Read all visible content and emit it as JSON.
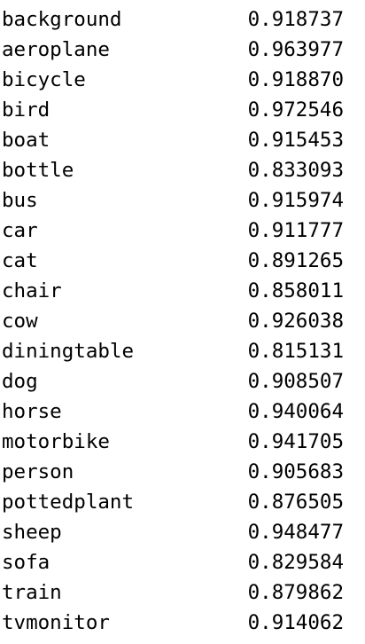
{
  "results": {
    "rows": [
      {
        "label": "background",
        "value": "0.918737"
      },
      {
        "label": "aeroplane",
        "value": "0.963977"
      },
      {
        "label": "bicycle",
        "value": "0.918870"
      },
      {
        "label": "bird",
        "value": "0.972546"
      },
      {
        "label": "boat",
        "value": "0.915453"
      },
      {
        "label": "bottle",
        "value": "0.833093"
      },
      {
        "label": "bus",
        "value": "0.915974"
      },
      {
        "label": "car",
        "value": "0.911777"
      },
      {
        "label": "cat",
        "value": "0.891265"
      },
      {
        "label": "chair",
        "value": "0.858011"
      },
      {
        "label": "cow",
        "value": "0.926038"
      },
      {
        "label": "diningtable",
        "value": "0.815131"
      },
      {
        "label": "dog",
        "value": "0.908507"
      },
      {
        "label": "horse",
        "value": "0.940064"
      },
      {
        "label": "motorbike",
        "value": "0.941705"
      },
      {
        "label": "person",
        "value": "0.905683"
      },
      {
        "label": "pottedplant",
        "value": "0.876505"
      },
      {
        "label": "sheep",
        "value": "0.948477"
      },
      {
        "label": "sofa",
        "value": "0.829584"
      },
      {
        "label": "train",
        "value": "0.879862"
      },
      {
        "label": "tvmonitor",
        "value": "0.914062"
      }
    ]
  }
}
